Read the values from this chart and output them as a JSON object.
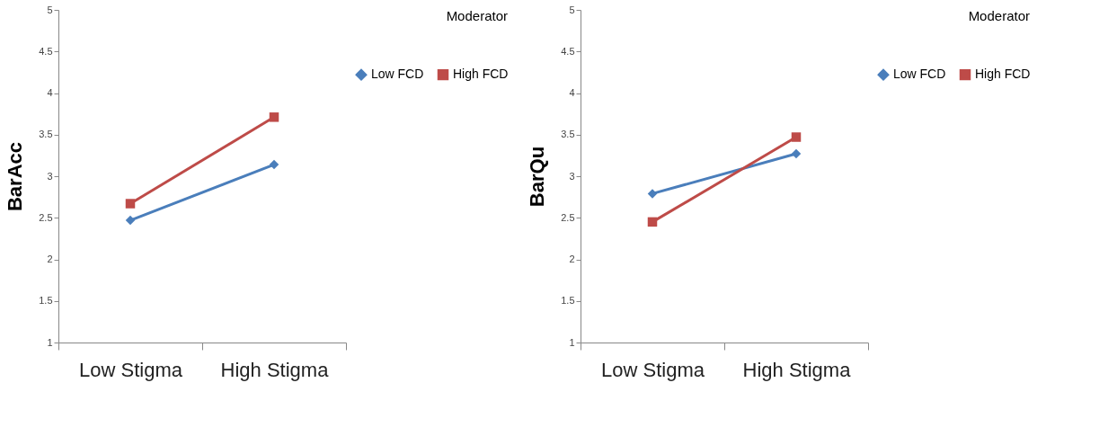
{
  "chart_data": [
    {
      "type": "line",
      "ylabel": "BarAcc",
      "legend_title": "Moderator",
      "categories": [
        "Low Stigma",
        "High Stigma"
      ],
      "ylim": [
        1,
        5
      ],
      "yticks": [
        1,
        1.5,
        2,
        2.5,
        3,
        3.5,
        4,
        4.5,
        5
      ],
      "legend": "right",
      "series": [
        {
          "name": "Low FCD",
          "color": "#4a7ebb",
          "marker": "diamond",
          "values": [
            2.47,
            3.14
          ]
        },
        {
          "name": "High FCD",
          "color": "#be4b48",
          "marker": "square",
          "values": [
            2.67,
            3.71
          ]
        }
      ]
    },
    {
      "type": "line",
      "ylabel": "BarQu",
      "legend_title": "Moderator",
      "categories": [
        "Low Stigma",
        "High Stigma"
      ],
      "ylim": [
        1,
        5
      ],
      "yticks": [
        1,
        1.5,
        2,
        2.5,
        3,
        3.5,
        4,
        4.5,
        5
      ],
      "legend": "right",
      "series": [
        {
          "name": "Low FCD",
          "color": "#4a7ebb",
          "marker": "diamond",
          "values": [
            2.79,
            3.27
          ]
        },
        {
          "name": "High FCD",
          "color": "#be4b48",
          "marker": "square",
          "values": [
            2.45,
            3.47
          ]
        }
      ]
    }
  ]
}
